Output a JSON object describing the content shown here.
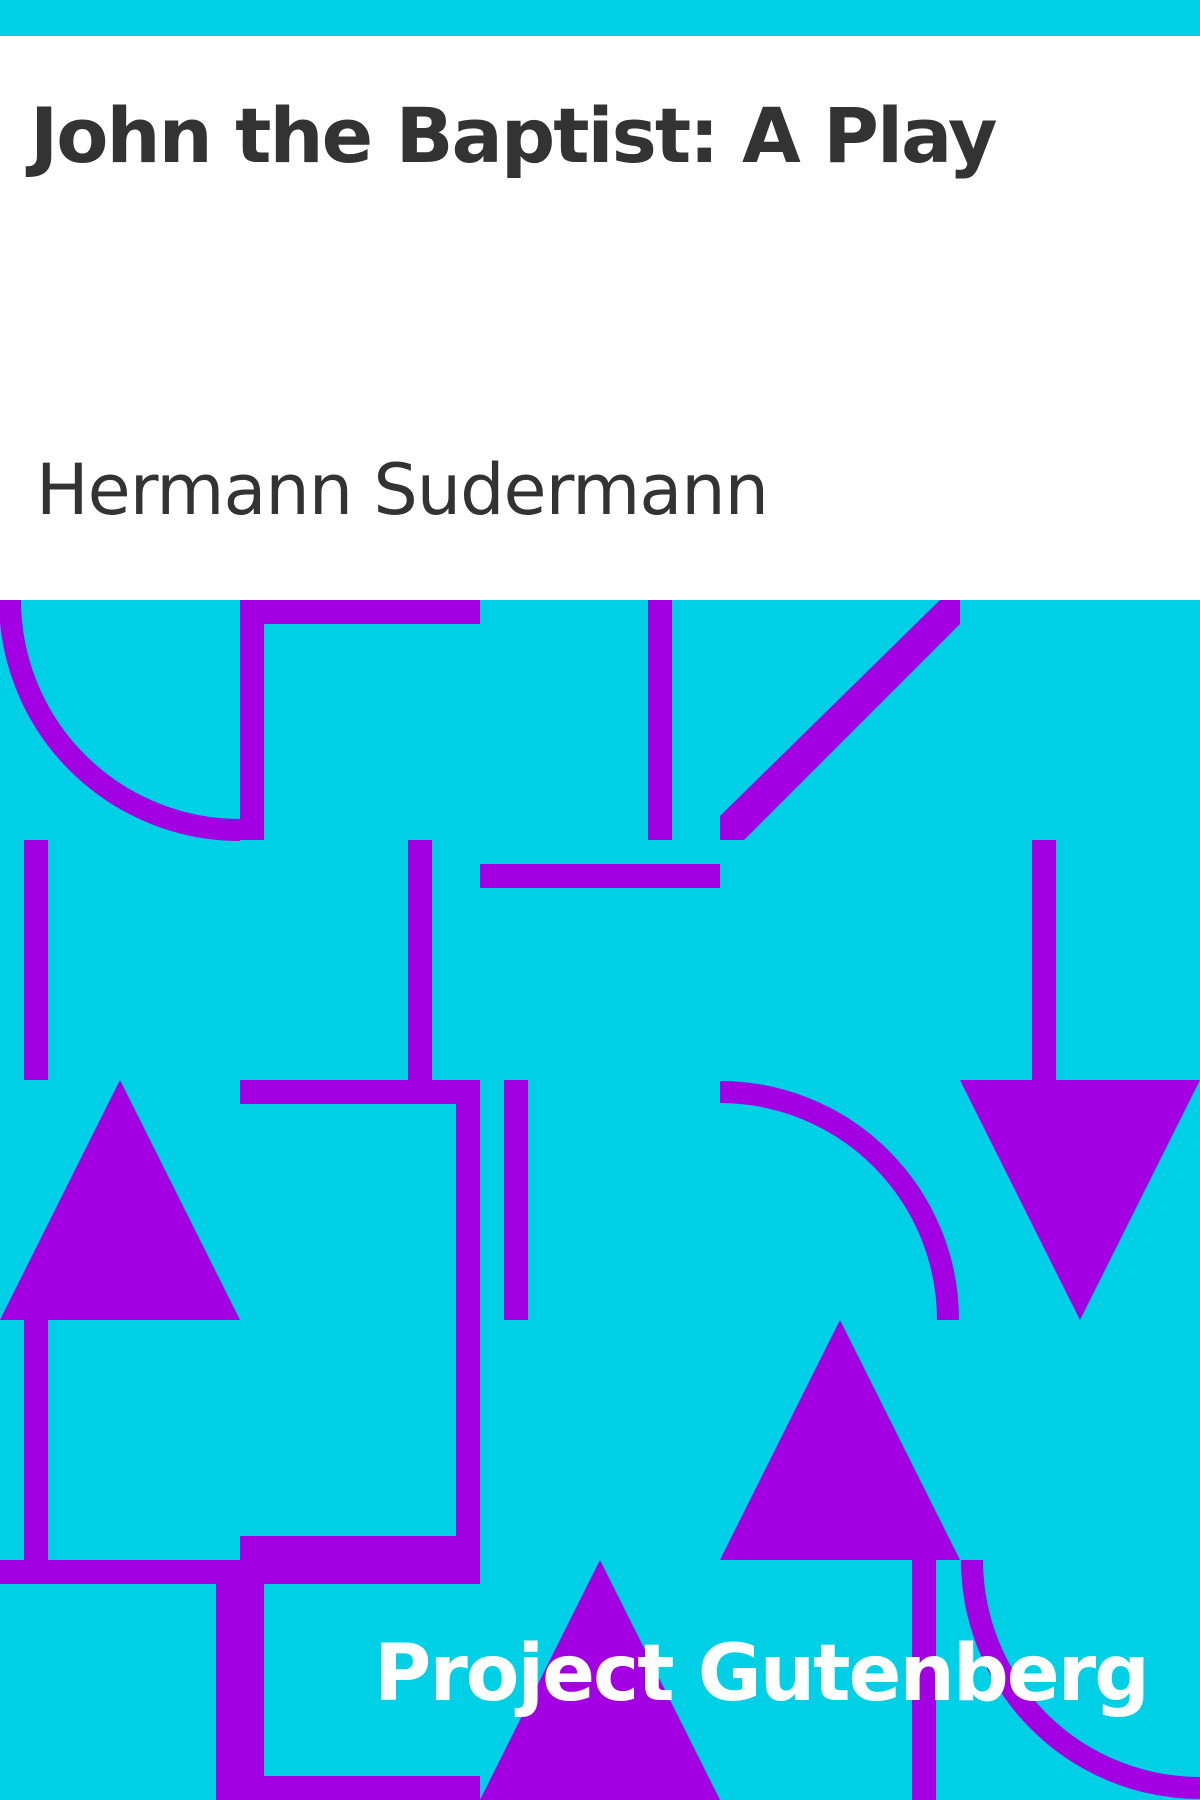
{
  "book": {
    "title": "John the Baptist: A Play",
    "author": "Hermann Sudermann",
    "publisher": "Project Gutenberg"
  },
  "colors": {
    "background": "#00D0E5",
    "pattern": "#A200E2",
    "title_panel": "#FFFFFF",
    "title_text": "#333333",
    "publisher_text": "#FFFFFF"
  }
}
